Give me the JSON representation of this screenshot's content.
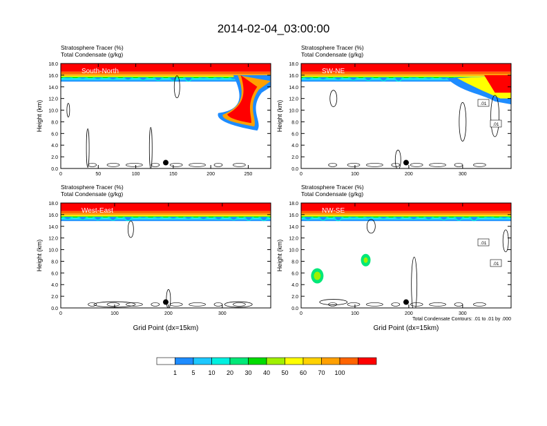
{
  "figure": {
    "title": "2014-02-04_03:00:00",
    "contour_note": "Total Condensate Contours: .01 to .01 by .000",
    "colorbar": {
      "levels": [
        "1",
        "5",
        "10",
        "20",
        "30",
        "40",
        "50",
        "60",
        "70",
        "100"
      ],
      "colors": [
        "#ffffff",
        "#1e8cff",
        "#1ec8ff",
        "#00f0e0",
        "#00e878",
        "#00dc00",
        "#a0f000",
        "#ffff00",
        "#ffd200",
        "#ffa000",
        "#ff6400",
        "#ff0000"
      ]
    }
  },
  "chart_data": [
    {
      "type": "heatmap",
      "panel": "South-North",
      "title_line1": "Stratosphere Tracer   (%)",
      "title_line2": "Total Condensate   (g/kg)",
      "label": "South-North",
      "xlabel": "",
      "ylabel": "Height (km)",
      "xlim": [
        0,
        280
      ],
      "xticks": [
        0,
        50,
        100,
        150,
        200,
        250
      ],
      "ylim": [
        0,
        18
      ],
      "yticks": [
        "0.0",
        "2.0",
        "4.0",
        "6.0",
        "8.0",
        "10.0",
        "12.0",
        "14.0",
        "16.0",
        "18.0"
      ],
      "tropopause_km": 15.5,
      "marker": {
        "x": 140,
        "y": 1.0
      },
      "contour_labels": []
    },
    {
      "type": "heatmap",
      "panel": "SW-NE",
      "title_line1": "Stratosphere Tracer   (%)",
      "title_line2": "Total Condensate   (g/kg)",
      "label": "SW-NE",
      "xlabel": "",
      "ylabel": "Height (km)",
      "xlim": [
        0,
        390
      ],
      "xticks": [
        0,
        100,
        200,
        300
      ],
      "ylim": [
        0,
        18
      ],
      "yticks": [
        "0.0",
        "2.0",
        "4.0",
        "6.0",
        "8.0",
        "10.0",
        "12.0",
        "14.0",
        "16.0",
        "18.0"
      ],
      "tropopause_km": 15.5,
      "marker": {
        "x": 195,
        "y": 1.0
      },
      "contour_labels": [
        ".01",
        ".01"
      ]
    },
    {
      "type": "heatmap",
      "panel": "West-East",
      "title_line1": "Stratosphere Tracer   (%)",
      "title_line2": "Total Condensate   (g/kg)",
      "label": "West-East",
      "xlabel": "Grid Point (dx=15km)",
      "ylabel": "Height (km)",
      "xlim": [
        0,
        390
      ],
      "xticks": [
        0,
        100,
        200,
        300
      ],
      "ylim": [
        0,
        18
      ],
      "yticks": [
        "0.0",
        "2.0",
        "4.0",
        "6.0",
        "8.0",
        "10.0",
        "12.0",
        "14.0",
        "16.0",
        "18.0"
      ],
      "tropopause_km": 15.5,
      "marker": {
        "x": 195,
        "y": 1.0
      },
      "contour_labels": []
    },
    {
      "type": "heatmap",
      "panel": "NW-SE",
      "title_line1": "Stratosphere Tracer   (%)",
      "title_line2": "Total Condensate   (g/kg)",
      "label": "NW-SE",
      "xlabel": "Grid Point (dx=15km)",
      "ylabel": "Height (km)",
      "xlim": [
        0,
        390
      ],
      "xticks": [
        0,
        100,
        200,
        300
      ],
      "ylim": [
        0,
        18
      ],
      "yticks": [
        "0.0",
        "2.0",
        "4.0",
        "6.0",
        "8.0",
        "10.0",
        "12.0",
        "14.0",
        "16.0",
        "18.0"
      ],
      "tropopause_km": 15.5,
      "marker": {
        "x": 195,
        "y": 1.0
      },
      "contour_labels": [
        ".01",
        ".01"
      ]
    }
  ]
}
